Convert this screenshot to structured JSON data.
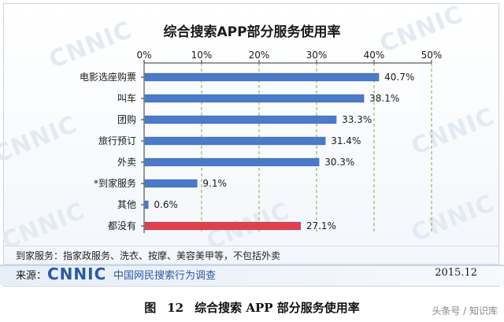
{
  "chart_data": {
    "type": "bar",
    "orientation": "horizontal",
    "title": "综合搜索APP部分服务使用率",
    "categories": [
      "电影选座购票",
      "叫车",
      "团购",
      "旅行预订",
      "外卖",
      "*到家服务",
      "其他",
      "都没有"
    ],
    "values": [
      40.7,
      38.1,
      33.3,
      31.4,
      30.3,
      9.1,
      0.6,
      27.1
    ],
    "value_labels": [
      "40.7%",
      "38.1%",
      "33.3%",
      "31.4%",
      "30.3%",
      "9.1%",
      "0.6%",
      "27.1%"
    ],
    "xlim": [
      0,
      50
    ],
    "ticks": [
      0,
      10,
      20,
      30,
      40,
      50
    ],
    "tick_labels": [
      "0%",
      "10%",
      "20%",
      "30%",
      "40%",
      "50%"
    ],
    "axis_position": "top",
    "grid": true,
    "colors": {
      "bar": "#4a7ac8",
      "bar_highlight": "#e0404a",
      "grid": "#7fae3a"
    },
    "highlight_category": "都没有"
  },
  "watermark": "CNNIC",
  "footnote": "到家服务：指家政服务、洗衣、按摩、美容美甲等，不包括外卖",
  "source": {
    "label": "来源：",
    "logo": "CNNIC",
    "org": "中国网民搜索行为调查",
    "date": "2015.12"
  },
  "caption": {
    "figure": "图",
    "number": "12",
    "text": "综合搜索 APP 部分服务使用率"
  },
  "credit": "头条号 / 知识库"
}
